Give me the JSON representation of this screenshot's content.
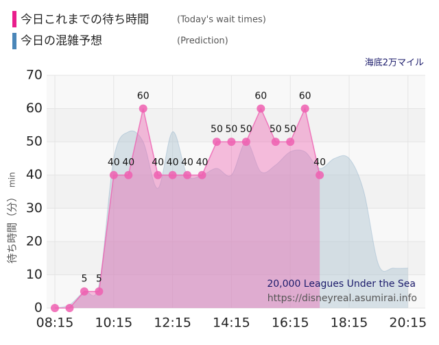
{
  "chart_data": {
    "type": "line",
    "subtitle": "海底2万マイル",
    "y_label": "待ち時間（分）",
    "y_unit": "min",
    "annotations": [
      "20,000 Leagues Under the Sea",
      "https://disneyreal.asumirai.info"
    ],
    "categories": [
      "08:15",
      null,
      null,
      null,
      "10:15",
      null,
      null,
      null,
      "12:15",
      null,
      null,
      null,
      "14:15",
      null,
      null,
      null,
      "16:15",
      null,
      null,
      null,
      "18:15",
      null,
      null,
      null,
      "20:15"
    ],
    "ylim": [
      0,
      70
    ],
    "yticks": [
      0,
      10,
      20,
      30,
      40,
      50,
      60,
      70
    ],
    "grid": true,
    "series": [
      {
        "name": "今日これまでの待ち時間",
        "name_sub": "(Today's wait times)",
        "color": "#ee5fb0",
        "values": [
          0,
          0,
          5,
          5,
          40,
          40,
          60,
          40,
          40,
          40,
          40,
          50,
          50,
          50,
          60,
          50,
          50,
          60,
          40,
          null,
          null,
          null,
          null,
          null,
          null
        ],
        "value_labels": [
          null,
          null,
          "5",
          "5",
          "40",
          "40",
          "60",
          "40",
          "40",
          "40",
          "40",
          "50",
          "50",
          "50",
          "60",
          "50",
          "50",
          "60",
          "40",
          null,
          null,
          null,
          null,
          null,
          null
        ]
      },
      {
        "name": "今日の混雑予想",
        "name_sub": "(Prediction)",
        "color": "#4f87b5",
        "values": [
          0,
          1,
          5,
          7,
          45,
          53,
          50,
          36,
          53,
          40,
          40,
          42,
          40,
          50,
          41,
          43,
          47,
          47,
          42,
          45,
          45,
          35,
          13,
          12,
          12
        ]
      }
    ]
  }
}
